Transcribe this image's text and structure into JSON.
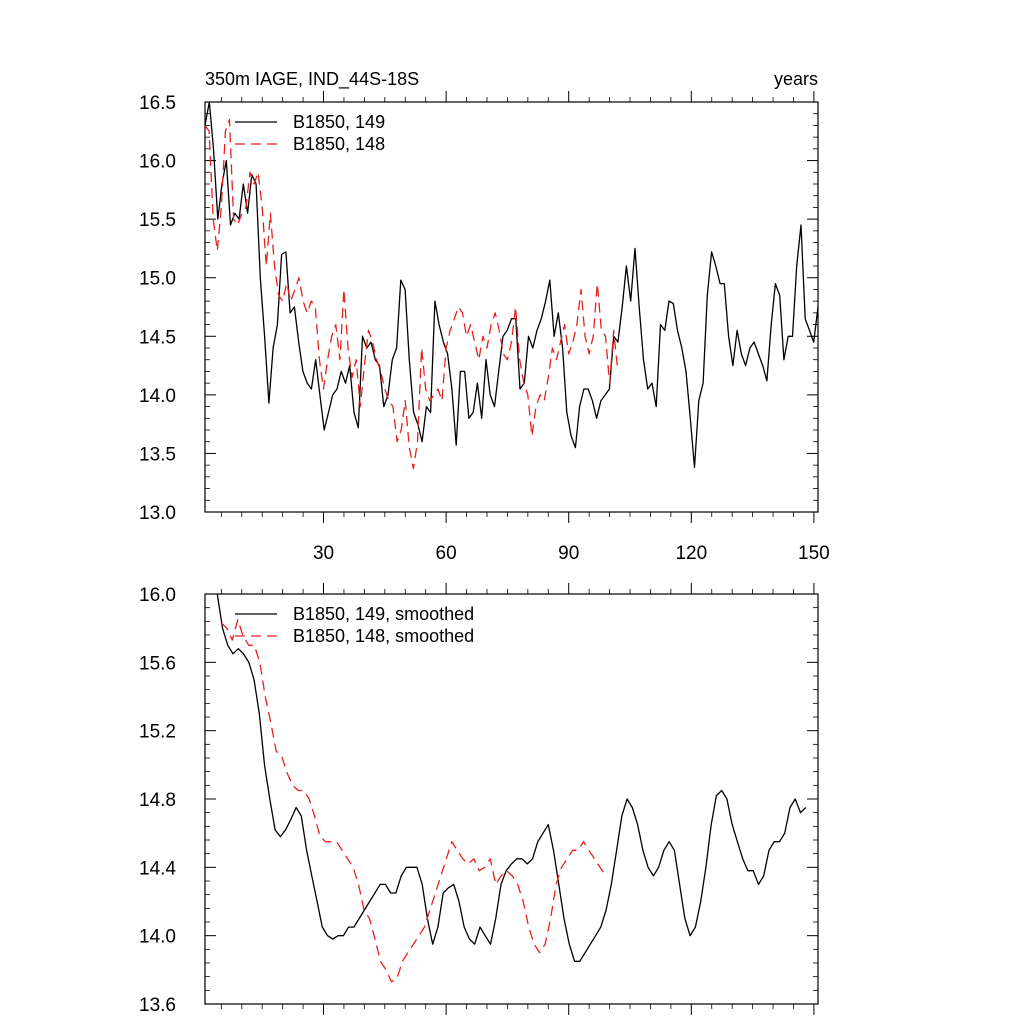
{
  "chart_data": [
    {
      "type": "line",
      "title_left": "350m IAGE, IND_44S-18S",
      "title_right": "years",
      "xlim": [
        1,
        151
      ],
      "ylim": [
        13.0,
        16.5
      ],
      "xticks": [
        30,
        60,
        90,
        120,
        150
      ],
      "xtick_labels": [
        "30",
        "60",
        "90",
        "120",
        "150"
      ],
      "yticks": [
        13.0,
        13.5,
        14.0,
        14.5,
        15.0,
        15.5,
        16.0,
        16.5
      ],
      "ytick_labels": [
        "13.0",
        "13.5",
        "14.0",
        "14.5",
        "15.0",
        "15.5",
        "16.0",
        "16.5"
      ],
      "legend_position": "top-left",
      "series": [
        {
          "name": "B1850, 149",
          "color": "#000000",
          "dash": "solid",
          "x_start": 1,
          "values": [
            16.3,
            16.5,
            16.1,
            15.5,
            15.8,
            16.0,
            15.45,
            15.55,
            15.5,
            15.8,
            15.55,
            15.88,
            15.8,
            15.0,
            14.5,
            13.93,
            14.4,
            14.6,
            15.2,
            15.22,
            14.7,
            14.75,
            14.45,
            14.2,
            14.1,
            14.05,
            14.3,
            14.0,
            13.7,
            13.85,
            14.0,
            14.05,
            14.2,
            14.1,
            14.25,
            13.85,
            13.72,
            14.5,
            14.4,
            14.45,
            14.3,
            14.25,
            13.9,
            14.0,
            14.3,
            14.4,
            14.98,
            14.9,
            14.3,
            13.85,
            13.75,
            13.6,
            13.9,
            13.85,
            14.8,
            14.6,
            14.45,
            14.35,
            14.05,
            13.57,
            14.2,
            14.2,
            13.8,
            13.85,
            14.1,
            13.8,
            14.3,
            14.0,
            13.9,
            14.2,
            14.5,
            14.55,
            14.65,
            14.65,
            14.05,
            14.1,
            14.5,
            14.4,
            14.55,
            14.65,
            14.8,
            14.98,
            14.5,
            14.7,
            14.4,
            13.85,
            13.65,
            13.55,
            13.9,
            14.05,
            14.05,
            13.95,
            13.8,
            13.95,
            14.0,
            14.05,
            14.5,
            14.45,
            14.75,
            15.1,
            14.8,
            15.25,
            14.75,
            14.3,
            14.05,
            14.1,
            13.9,
            14.6,
            14.55,
            14.8,
            14.78,
            14.55,
            14.4,
            14.2,
            13.8,
            13.38,
            13.95,
            14.1,
            14.85,
            15.22,
            15.1,
            14.95,
            14.95,
            14.5,
            14.25,
            14.55,
            14.35,
            14.25,
            14.4,
            14.45,
            14.35,
            14.25,
            14.12,
            14.6,
            14.95,
            14.85,
            14.3,
            14.5,
            14.5,
            15.1,
            15.45,
            14.65,
            14.55,
            14.45,
            14.75
          ],
          "x_end": 151
        },
        {
          "name": "B1850, 148",
          "color": "#e8201c",
          "dash": "dashed",
          "x_start": 1,
          "values": [
            16.3,
            16.25,
            15.5,
            15.23,
            15.6,
            16.25,
            16.35,
            15.5,
            15.45,
            15.55,
            15.6,
            15.9,
            15.8,
            15.9,
            15.6,
            15.1,
            15.55,
            15.1,
            14.85,
            14.8,
            14.95,
            14.8,
            14.9,
            15.0,
            14.8,
            14.7,
            14.8,
            14.75,
            14.3,
            14.05,
            14.3,
            14.5,
            14.6,
            14.3,
            14.9,
            14.4,
            14.15,
            14.3,
            13.9,
            14.25,
            14.55,
            14.45,
            14.3,
            14.2,
            14.05,
            13.95,
            13.9,
            13.6,
            13.7,
            13.95,
            13.55,
            13.37,
            13.6,
            14.4,
            14.05,
            13.95,
            14.0,
            14.05,
            13.95,
            14.4,
            14.55,
            14.65,
            14.75,
            14.7,
            14.5,
            14.6,
            14.45,
            14.3,
            14.5,
            14.4,
            14.6,
            14.7,
            14.55,
            14.35,
            14.3,
            14.45,
            14.75,
            14.3,
            14.1,
            14.0,
            13.65,
            13.9,
            14.0,
            13.95,
            14.15,
            14.4,
            14.3,
            14.45,
            14.6,
            14.35,
            14.45,
            14.6,
            14.9,
            14.5,
            14.35,
            14.5,
            14.95,
            14.55,
            14.5,
            14.1,
            14.55,
            14.2
          ],
          "x_end": 102
        }
      ]
    },
    {
      "type": "line",
      "xlim": [
        1,
        151
      ],
      "ylim": [
        13.6,
        16.0
      ],
      "xticks": [
        30,
        60,
        90,
        120,
        150
      ],
      "yticks": [
        13.6,
        14.0,
        14.4,
        14.8,
        15.2,
        15.6,
        16.0
      ],
      "ytick_labels": [
        "13.6",
        "14.0",
        "14.4",
        "14.8",
        "15.2",
        "15.6",
        "16.0"
      ],
      "legend_position": "top-left",
      "series": [
        {
          "name": "B1850, 149, smoothed",
          "color": "#000000",
          "dash": "solid",
          "x_start": 4,
          "values": [
            16.0,
            15.8,
            15.7,
            15.65,
            15.68,
            15.65,
            15.6,
            15.5,
            15.3,
            15.0,
            14.8,
            14.62,
            14.58,
            14.62,
            14.68,
            14.75,
            14.7,
            14.5,
            14.35,
            14.2,
            14.05,
            14.0,
            13.98,
            14.0,
            14.0,
            14.05,
            14.05,
            14.1,
            14.15,
            14.2,
            14.25,
            14.3,
            14.3,
            14.25,
            14.25,
            14.35,
            14.4,
            14.4,
            14.4,
            14.3,
            14.1,
            13.95,
            14.05,
            14.25,
            14.28,
            14.3,
            14.2,
            14.05,
            13.98,
            13.95,
            14.05,
            14.0,
            13.95,
            14.1,
            14.3,
            14.38,
            14.42,
            14.45,
            14.45,
            14.42,
            14.45,
            14.55,
            14.6,
            14.65,
            14.5,
            14.3,
            14.1,
            13.95,
            13.85,
            13.85,
            13.9,
            13.95,
            14.0,
            14.05,
            14.15,
            14.3,
            14.5,
            14.7,
            14.8,
            14.75,
            14.65,
            14.5,
            14.4,
            14.35,
            14.4,
            14.5,
            14.55,
            14.5,
            14.3,
            14.1,
            14.0,
            14.05,
            14.2,
            14.4,
            14.65,
            14.82,
            14.85,
            14.8,
            14.65,
            14.55,
            14.45,
            14.38,
            14.38,
            14.3,
            14.35,
            14.5,
            14.55,
            14.55,
            14.6,
            14.75,
            14.8,
            14.72,
            14.75
          ],
          "x_end": 148
        },
        {
          "name": "B1850, 148, smoothed",
          "color": "#e8201c",
          "dash": "dashed",
          "x_start": 5,
          "values": [
            15.83,
            15.8,
            15.73,
            15.85,
            15.75,
            15.7,
            15.7,
            15.6,
            15.4,
            15.25,
            15.08,
            15.05,
            14.95,
            14.88,
            14.85,
            14.85,
            14.8,
            14.7,
            14.58,
            14.55,
            14.55,
            14.55,
            14.5,
            14.45,
            14.4,
            14.3,
            14.15,
            14.1,
            13.98,
            13.85,
            13.8,
            13.73,
            13.75,
            13.85,
            13.9,
            13.95,
            14.0,
            14.05,
            14.15,
            14.25,
            14.35,
            14.45,
            14.55,
            14.5,
            14.45,
            14.42,
            14.45,
            14.38,
            14.4,
            14.45,
            14.3,
            14.35,
            14.38,
            14.35,
            14.3,
            14.2,
            14.05,
            13.95,
            13.9,
            13.95,
            14.1,
            14.3,
            14.4,
            14.45,
            14.5,
            14.5,
            14.55,
            14.5,
            14.45,
            14.4,
            14.35
          ],
          "x_end": 99
        }
      ]
    }
  ]
}
